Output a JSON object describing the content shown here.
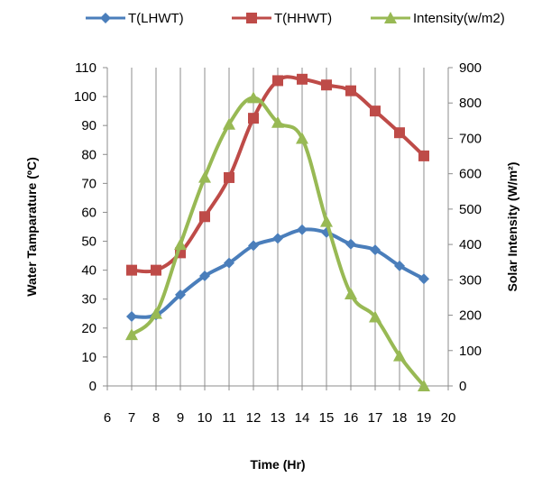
{
  "chart_data": {
    "type": "line",
    "xlabel": "Time (Hr)",
    "ylabel": "Water Tamparature (ºC)",
    "y2label": "Solar Intensity (W/m²)",
    "xlim": [
      6,
      20
    ],
    "ylim": [
      0,
      110
    ],
    "y2lim": [
      0,
      900
    ],
    "x_ticks": [
      "6",
      "7",
      "8",
      "9",
      "10",
      "11",
      "12",
      "13",
      "14",
      "15",
      "16",
      "17",
      "18",
      "19",
      "20"
    ],
    "y_ticks": [
      "0",
      "10",
      "20",
      "30",
      "40",
      "50",
      "60",
      "70",
      "80",
      "90",
      "100",
      "110"
    ],
    "y2_ticks": [
      "0",
      "100",
      "200",
      "300",
      "400",
      "500",
      "600",
      "700",
      "800",
      "900"
    ],
    "grid": "vertical",
    "legend_position": "top",
    "series": [
      {
        "name": "T(LHWT)",
        "axis": "left",
        "color": "#4a7ebb",
        "marker": "diamond",
        "x": [
          7,
          8,
          9,
          10,
          11,
          12,
          13,
          14,
          15,
          16,
          17,
          18,
          19
        ],
        "y": [
          24,
          24.5,
          31.5,
          38,
          42.5,
          48.5,
          51,
          54,
          53,
          49,
          47,
          41.5,
          37
        ]
      },
      {
        "name": "T(HHWT)",
        "axis": "left",
        "color": "#be4b48",
        "marker": "square",
        "x": [
          7,
          8,
          9,
          10,
          11,
          12,
          13,
          14,
          15,
          16,
          17,
          18,
          19
        ],
        "y": [
          40,
          40,
          46,
          58.5,
          72,
          92.5,
          105.5,
          106,
          104,
          102,
          95,
          87.5,
          79.5
        ]
      },
      {
        "name": "Intensity(w/m2)",
        "axis": "right",
        "color": "#98b954",
        "marker": "triangle",
        "x": [
          7,
          8,
          9,
          10,
          11,
          12,
          13,
          14,
          15,
          16,
          17,
          18,
          19
        ],
        "y": [
          145,
          205,
          400,
          590,
          740,
          815,
          745,
          700,
          465,
          260,
          195,
          85,
          0
        ]
      }
    ]
  }
}
